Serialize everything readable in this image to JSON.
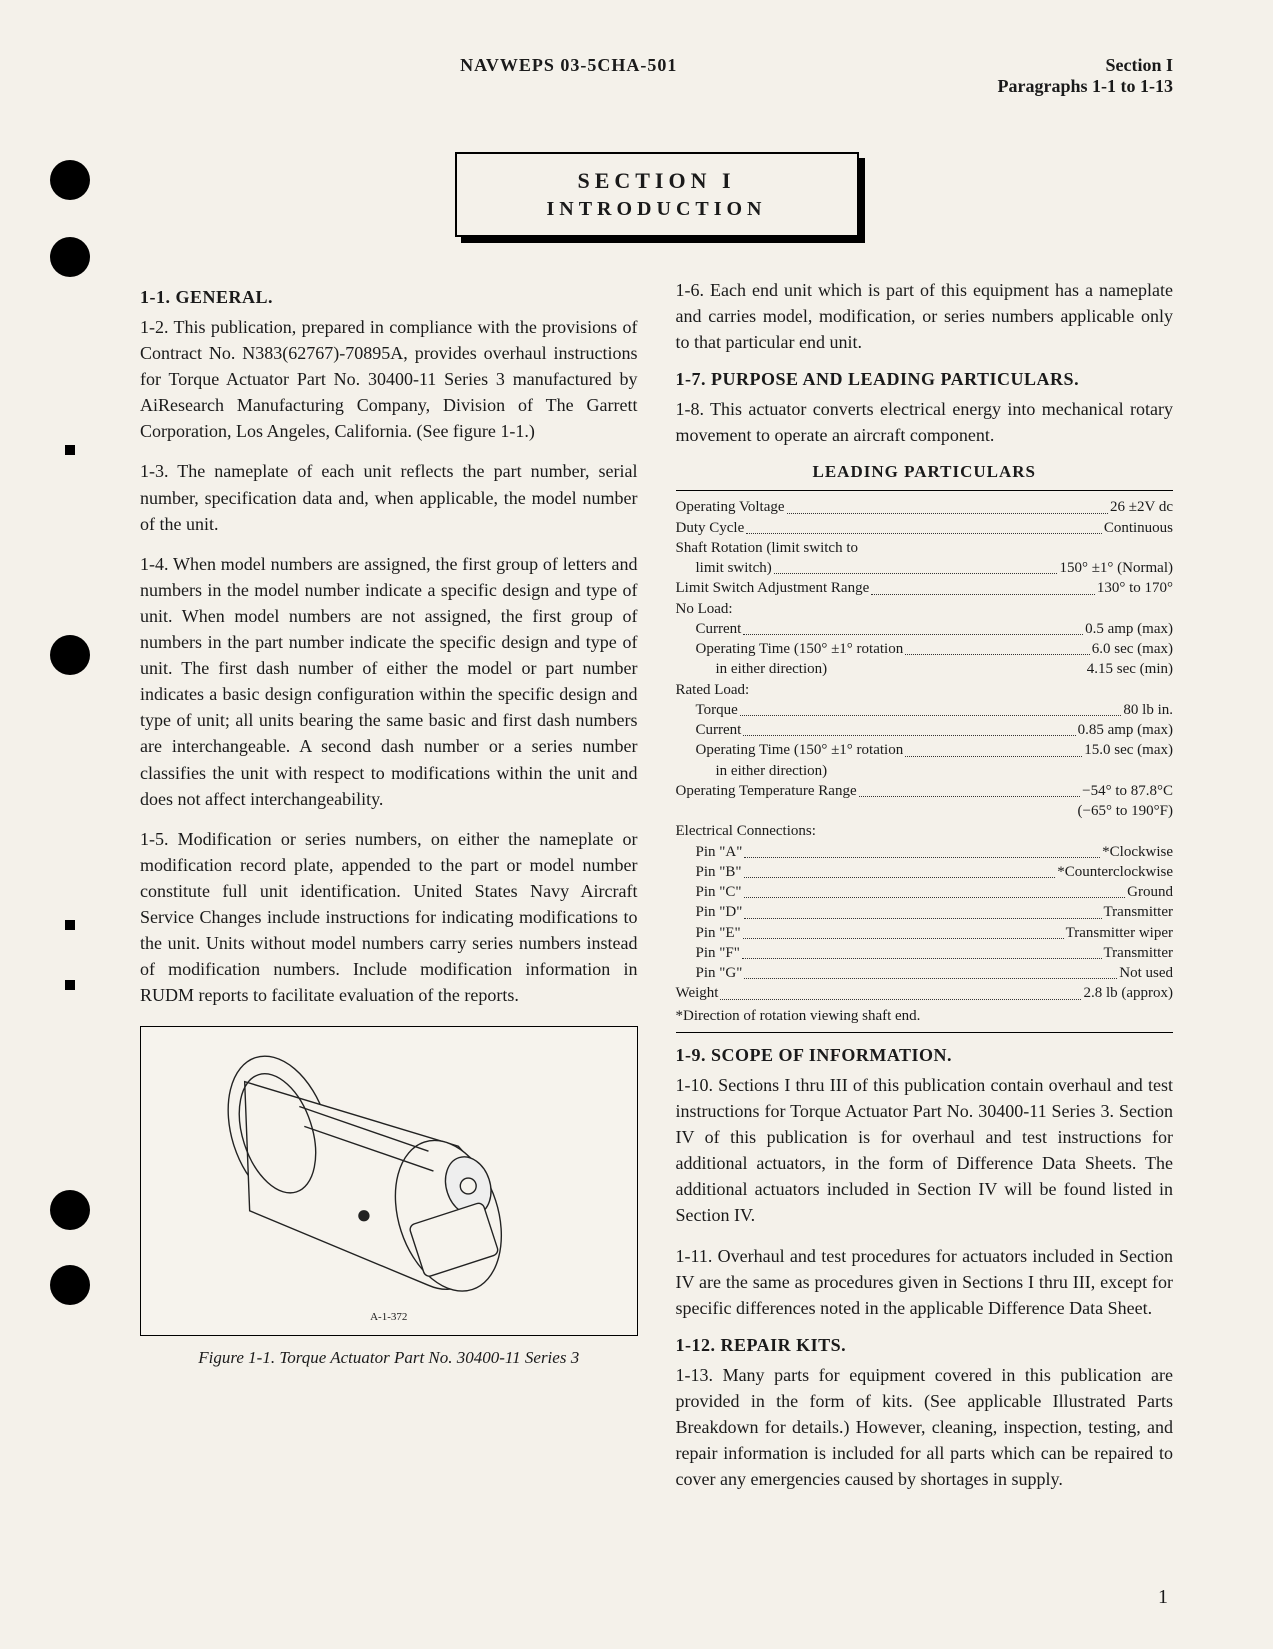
{
  "header": {
    "doc_id": "NAVWEPS 03-5CHA-501",
    "section": "Section I",
    "para_range": "Paragraphs 1-1 to 1-13"
  },
  "section_box": {
    "line1": "SECTION I",
    "line2": "INTRODUCTION"
  },
  "left_col": {
    "h1": "1-1. GENERAL.",
    "p12": "1-2. This publication, prepared in compliance with the provisions of Contract No. N383(62767)-70895A, provides overhaul instructions for Torque Actuator Part No. 30400-11 Series 3 manufactured by AiResearch Manufacturing Company, Division of The Garrett Corporation, Los Angeles, California. (See figure 1-1.)",
    "p13": "1-3. The nameplate of each unit reflects the part number, serial number, specification data and, when applicable, the model number of the unit.",
    "p14": "1-4. When model numbers are assigned, the first group of letters and numbers in the model number indicate a specific design and type of unit. When model numbers are not assigned, the first group of numbers in the part number indicate the specific design and type of unit. The first dash number of either the model or part number indicates a basic design configuration within the specific design and type of unit; all units bearing the same basic and first dash numbers are interchangeable. A second dash number or a series number classifies the unit with respect to modifications within the unit and does not affect interchangeability.",
    "p15": "1-5. Modification or series numbers, on either the nameplate or modification record plate, appended to the part or model number constitute full unit identification. United States Navy Aircraft Service Changes include instructions for indicating modifications to the unit. Units without model numbers carry series numbers instead of modification numbers. Include modification information in RUDM reports to facilitate evaluation of the reports.",
    "fig_ref": "A-1-372",
    "fig_caption": "Figure 1-1. Torque Actuator Part No. 30400-11 Series 3"
  },
  "right_col": {
    "p16": "1-6. Each end unit which is part of this equipment has a nameplate and carries model, modification, or series numbers applicable only to that particular end unit.",
    "h17": "1-7. PURPOSE AND LEADING PARTICULARS.",
    "p18": "1-8. This actuator converts electrical energy into mechanical rotary movement to operate an aircraft component.",
    "leading_title": "LEADING PARTICULARS",
    "specs": [
      {
        "label": "Operating Voltage",
        "value": "26 ±2V dc",
        "indent": 0
      },
      {
        "label": "Duty Cycle",
        "value": "Continuous",
        "indent": 0
      },
      {
        "label": "Shaft Rotation (limit switch to",
        "value": "",
        "indent": 0,
        "nodots": true
      },
      {
        "label": "limit switch)",
        "value": "150° ±1° (Normal)",
        "indent": 1
      },
      {
        "label": "Limit Switch Adjustment Range",
        "value": "130° to 170°",
        "indent": 0
      },
      {
        "label": "No Load:",
        "value": "",
        "indent": 0,
        "nodots": true
      },
      {
        "label": "Current",
        "value": "0.5 amp (max)",
        "indent": 1
      },
      {
        "label": "Operating Time (150° ±1° rotation",
        "value": "6.0 sec (max)",
        "indent": 1
      },
      {
        "label": "in either direction)",
        "value": "4.15 sec (min)",
        "indent": 2,
        "nodots": true
      },
      {
        "label": "Rated Load:",
        "value": "",
        "indent": 0,
        "nodots": true
      },
      {
        "label": "Torque",
        "value": "80 lb in.",
        "indent": 1
      },
      {
        "label": "Current",
        "value": "0.85 amp (max)",
        "indent": 1
      },
      {
        "label": "Operating Time (150° ±1° rotation",
        "value": "15.0 sec (max)",
        "indent": 1
      },
      {
        "label": "in either direction)",
        "value": "",
        "indent": 2,
        "nodots": true
      },
      {
        "label": "Operating Temperature Range",
        "value": "−54° to 87.8°C",
        "indent": 0
      },
      {
        "label": "",
        "value": "(−65° to 190°F)",
        "indent": 0,
        "rightonly": true
      },
      {
        "label": "Electrical Connections:",
        "value": "",
        "indent": 0,
        "nodots": true
      },
      {
        "label": "Pin \"A\"",
        "value": "*Clockwise",
        "indent": 1
      },
      {
        "label": "Pin \"B\"",
        "value": "*Counterclockwise",
        "indent": 1
      },
      {
        "label": "Pin \"C\"",
        "value": "Ground",
        "indent": 1
      },
      {
        "label": "Pin \"D\"",
        "value": "Transmitter",
        "indent": 1
      },
      {
        "label": "Pin \"E\"",
        "value": "Transmitter wiper",
        "indent": 1
      },
      {
        "label": "Pin \"F\"",
        "value": "Transmitter",
        "indent": 1
      },
      {
        "label": "Pin \"G\"",
        "value": "Not used",
        "indent": 1
      },
      {
        "label": "Weight",
        "value": "2.8 lb (approx)",
        "indent": 0
      }
    ],
    "spec_footnote": "*Direction of rotation viewing shaft end.",
    "h19": "1-9. SCOPE OF INFORMATION.",
    "p110": "1-10. Sections I thru III of this publication contain overhaul and test instructions for Torque Actuator Part No. 30400-11 Series 3. Section IV of this publication is for overhaul and test instructions for additional actuators, in the form of Difference Data Sheets. The additional actuators included in Section IV will be found listed in Section IV.",
    "p111": "1-11. Overhaul and test procedures for actuators included in Section IV are the same as procedures given in Sections I thru III, except for specific differences noted in the applicable Difference Data Sheet.",
    "h112": "1-12. REPAIR KITS.",
    "p113": "1-13. Many parts for equipment covered in this publication are provided in the form of kits. (See applicable Illustrated Parts Breakdown for details.) However, cleaning, inspection, testing, and repair information is included for all parts which can be repaired to cover any emergencies caused by shortages in supply."
  },
  "page_number": "1",
  "punch_holes": [
    160,
    237,
    635,
    1190,
    1265
  ],
  "punch_small": [
    445,
    920,
    980
  ]
}
